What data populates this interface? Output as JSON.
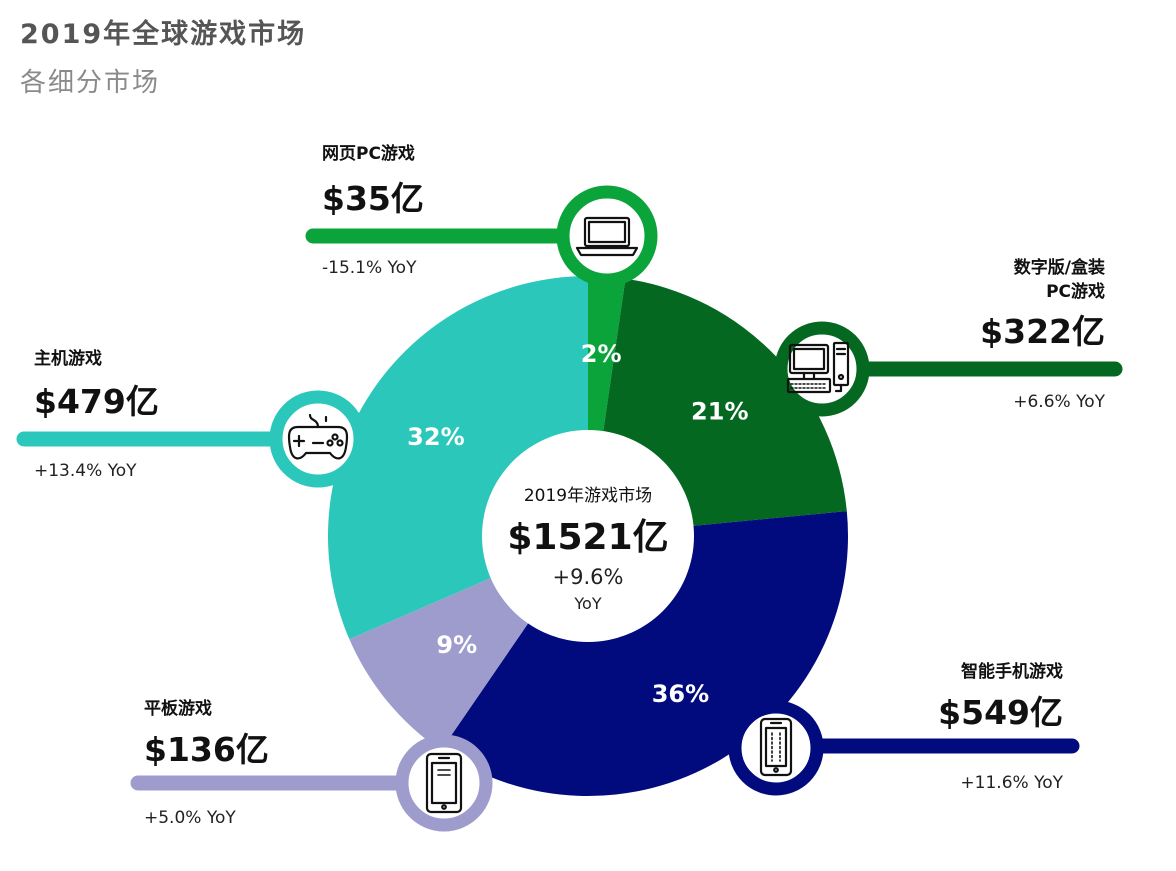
{
  "header": {
    "title": "2019年全球游戏市场",
    "subtitle": "各细分市场"
  },
  "center": {
    "label": "2019年游戏市场",
    "value": "$1521亿",
    "yoy": "+9.6%",
    "yoy_unit": "YoY"
  },
  "chart_data": {
    "type": "pie",
    "unit": "亿美元",
    "categories": [
      "网页PC游戏",
      "数字版/盒装PC游戏",
      "智能手机游戏",
      "平板游戏",
      "主机游戏"
    ],
    "values": [
      35,
      322,
      549,
      136,
      479
    ],
    "percent_labels": [
      "2%",
      "21%",
      "36%",
      "9%",
      "32%"
    ],
    "value_labels": [
      "$35亿",
      "$322亿",
      "$549亿",
      "$136亿",
      "$479亿"
    ],
    "yoy_labels": [
      "-15.1% YoY",
      "+6.6% YoY",
      "+11.6% YoY",
      "+5.0% YoY",
      "+13.4% YoY"
    ],
    "colors": [
      "#0aa43a",
      "#056820",
      "#020b7e",
      "#9d9ccd",
      "#2ac7ba"
    ],
    "icons": [
      "laptop-icon",
      "desktop-pc-icon",
      "smartphone-icon",
      "tablet-icon",
      "gamepad-icon"
    ],
    "total": 1521,
    "total_yoy": 9.6
  }
}
